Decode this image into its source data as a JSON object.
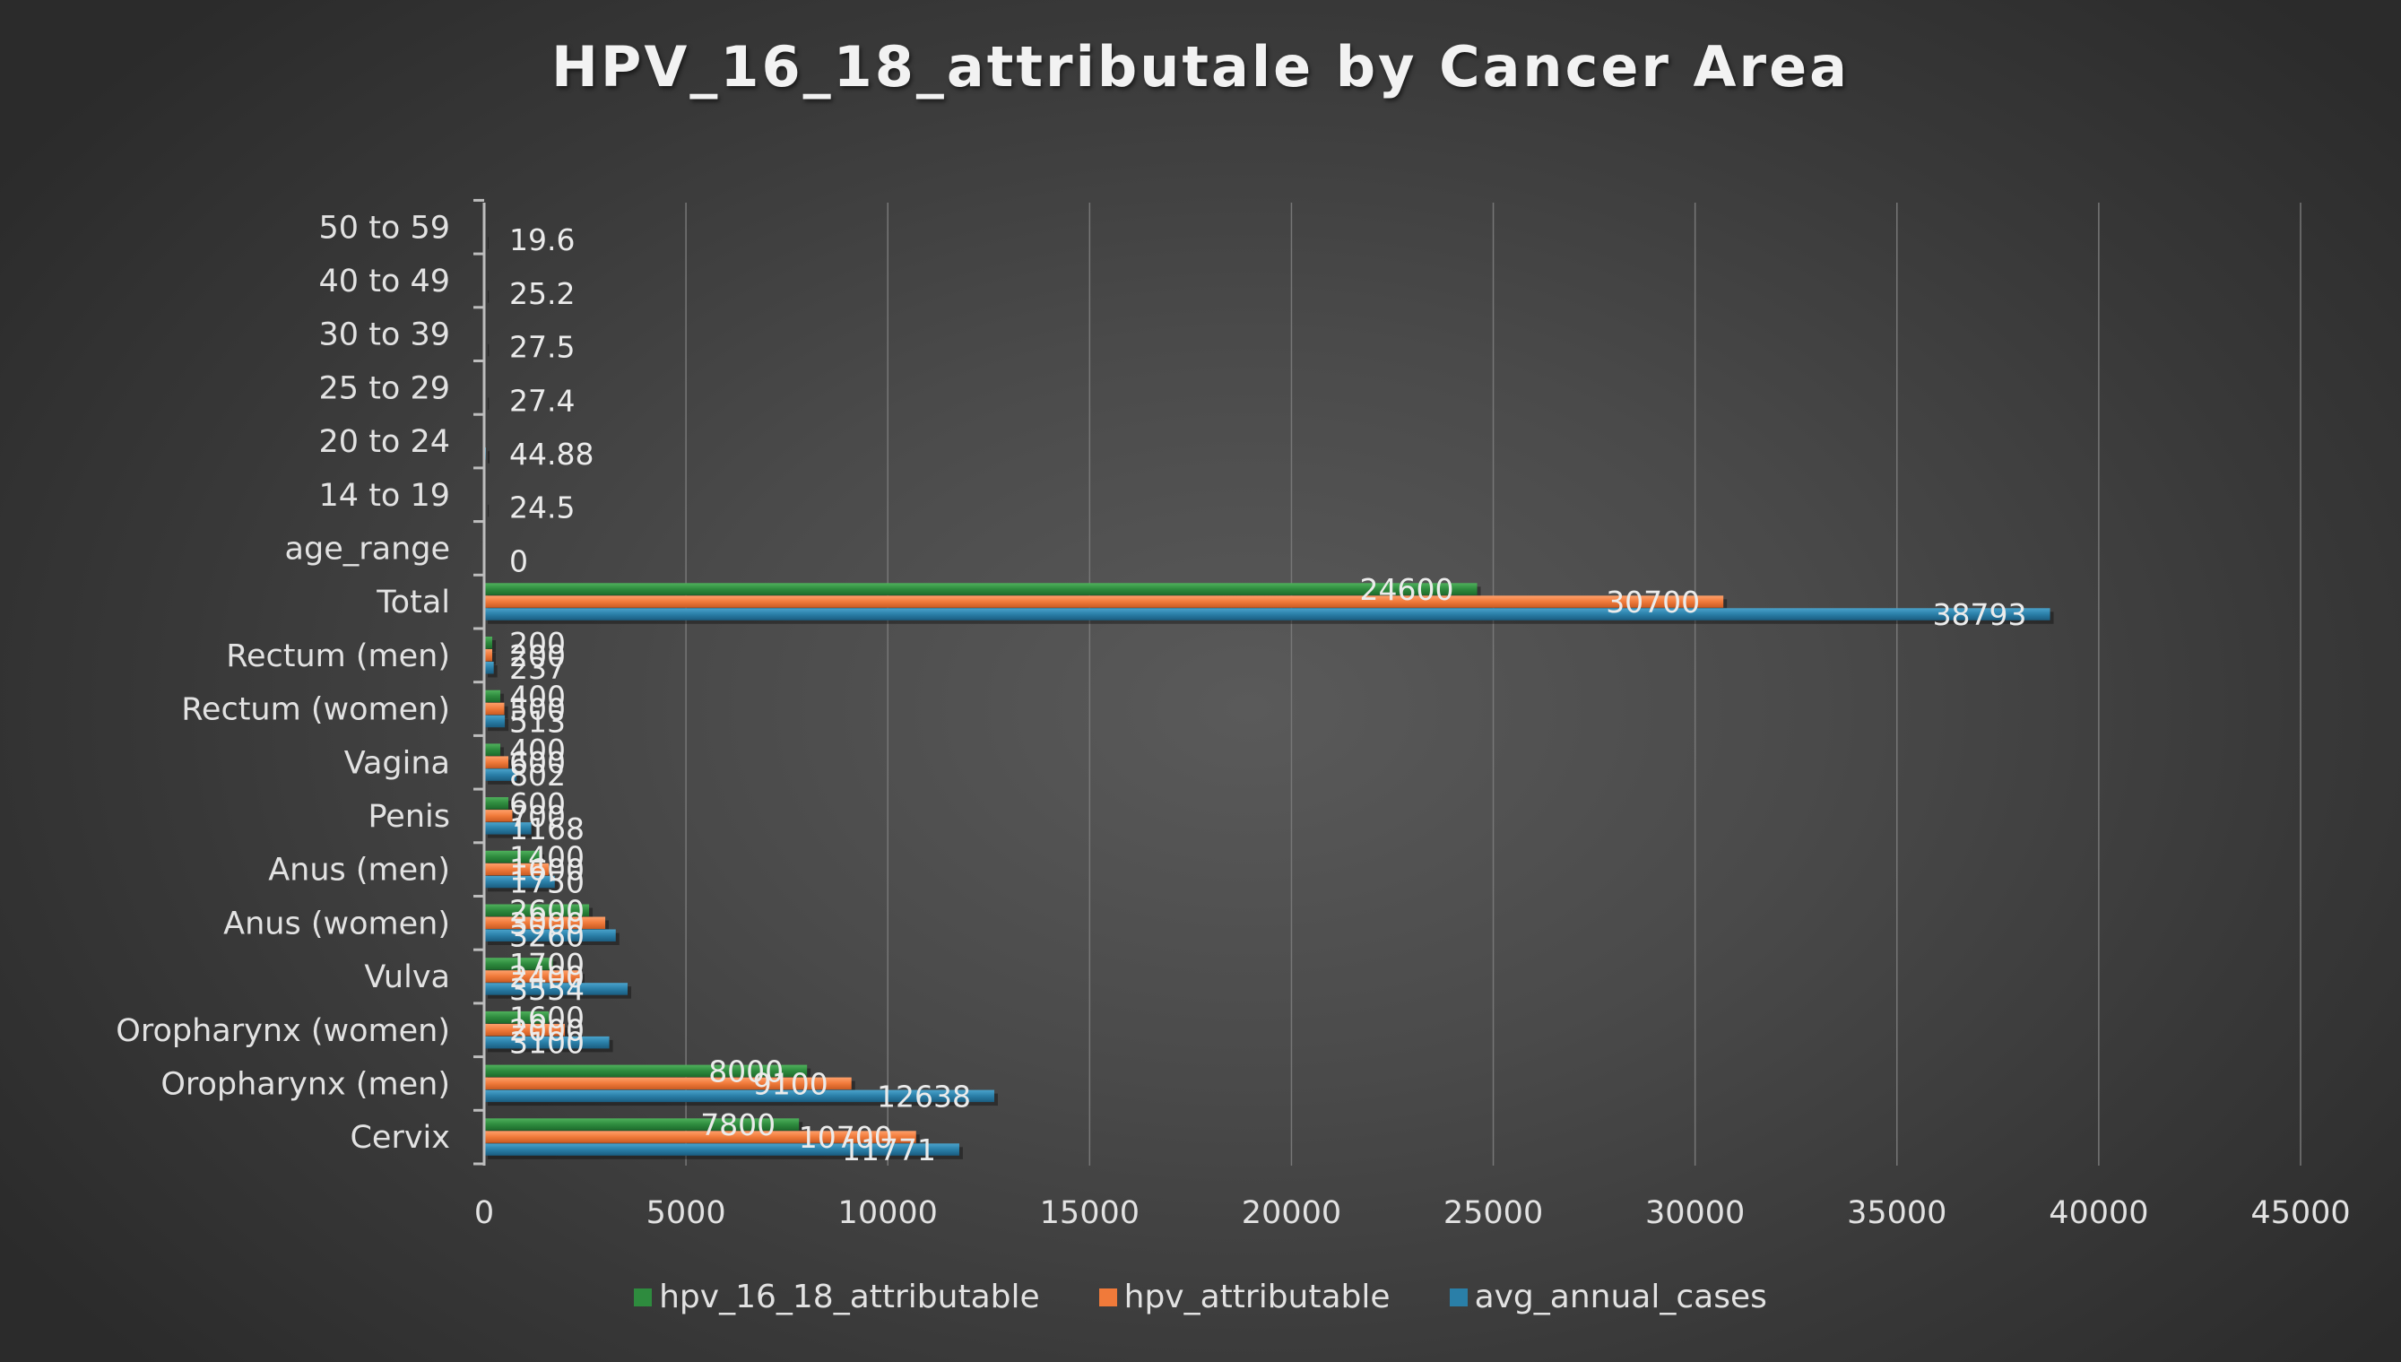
{
  "chart_data": {
    "type": "bar",
    "orientation": "horizontal",
    "title": "HPV_16_18_attributale by Cancer Area",
    "xlabel": "",
    "ylabel": "",
    "xlim": [
      0,
      45000
    ],
    "x_ticks": [
      "0",
      "5000",
      "10000",
      "15000",
      "20000",
      "25000",
      "30000",
      "35000",
      "40000",
      "45000"
    ],
    "grid": "vertical",
    "legend_position": "bottom",
    "categories": [
      "Cervix",
      "Oropharynx (men)",
      "Oropharynx (women)",
      "Vulva",
      "Anus (women)",
      "Anus (men)",
      "Penis",
      "Vagina",
      "Rectum (women)",
      "Rectum (men)",
      "Total",
      "age_range",
      "14 to 19",
      "20 to 24",
      "25 to 29",
      "30 to 39",
      "40 to 49",
      "50 to 59"
    ],
    "series": [
      {
        "name": "hpv_16_18_attributable",
        "color": "#2e8b3e",
        "values": [
          7800,
          8000,
          1600,
          1700,
          2600,
          1400,
          600,
          400,
          400,
          200,
          24600,
          null,
          null,
          null,
          null,
          null,
          null,
          null
        ]
      },
      {
        "name": "hpv_attributable",
        "color": "#f07a3a",
        "values": [
          10700,
          9100,
          2000,
          2400,
          3000,
          1600,
          700,
          600,
          500,
          200,
          30700,
          null,
          null,
          null,
          null,
          null,
          null,
          null
        ]
      },
      {
        "name": "avg_annual_cases",
        "color": "#2a7fa8",
        "values": [
          11771,
          12638,
          3100,
          3554,
          3260,
          1750,
          1168,
          802,
          513,
          237,
          38793,
          0,
          24.5,
          44.88,
          27.4,
          27.5,
          25.2,
          19.6
        ]
      }
    ]
  }
}
